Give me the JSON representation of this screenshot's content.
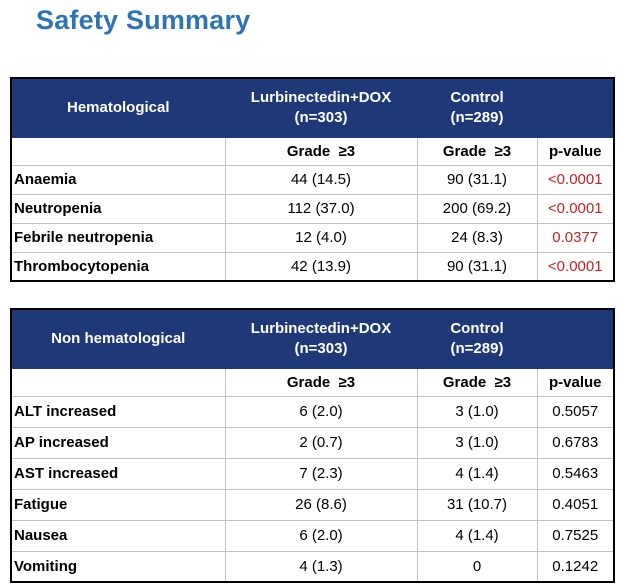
{
  "page": {
    "title": "Safety Summary"
  },
  "colors": {
    "title_blue": "#2E74B5",
    "header_navy": "#1F3878",
    "pvalue_red": "#C42222"
  },
  "columns": {
    "treatment_line1": "Lurbinectedin+DOX",
    "treatment_line2": "(n=303)",
    "control_line1": "Control",
    "control_line2": "(n=289)",
    "grade_label": "Grade  ≥3",
    "pvalue_label": "p-value"
  },
  "tables": [
    {
      "title": "Hematological",
      "rows": [
        {
          "label": "Anaemia",
          "treatment": "44 (14.5)",
          "control": "90 (31.1)",
          "pvalue": "<0.0001"
        },
        {
          "label": "Neutropenia",
          "treatment": "112 (37.0)",
          "control": "200 (69.2)",
          "pvalue": "<0.0001"
        },
        {
          "label": "Febrile neutropenia",
          "treatment": "12 (4.0)",
          "control": "24 (8.3)",
          "pvalue": "0.0377"
        },
        {
          "label": "Thrombocytopenia",
          "treatment": "42 (13.9)",
          "control": "90 (31.1)",
          "pvalue": "<0.0001"
        }
      ]
    },
    {
      "title": "Non hematological",
      "rows": [
        {
          "label": "ALT increased",
          "treatment": "6 (2.0)",
          "control": "3 (1.0)",
          "pvalue": "0.5057"
        },
        {
          "label": "AP increased",
          "treatment": "2 (0.7)",
          "control": "3 (1.0)",
          "pvalue": "0.6783"
        },
        {
          "label": "AST increased",
          "treatment": "7 (2.3)",
          "control": "4 (1.4)",
          "pvalue": "0.5463"
        },
        {
          "label": "Fatigue",
          "treatment": "26 (8.6)",
          "control": "31 (10.7)",
          "pvalue": "0.4051"
        },
        {
          "label": "Nausea",
          "treatment": "6 (2.0)",
          "control": "4 (1.4)",
          "pvalue": "0.7525"
        },
        {
          "label": "Vomiting",
          "treatment": "4 (1.3)",
          "control": "0",
          "pvalue": "0.1242"
        }
      ]
    }
  ]
}
